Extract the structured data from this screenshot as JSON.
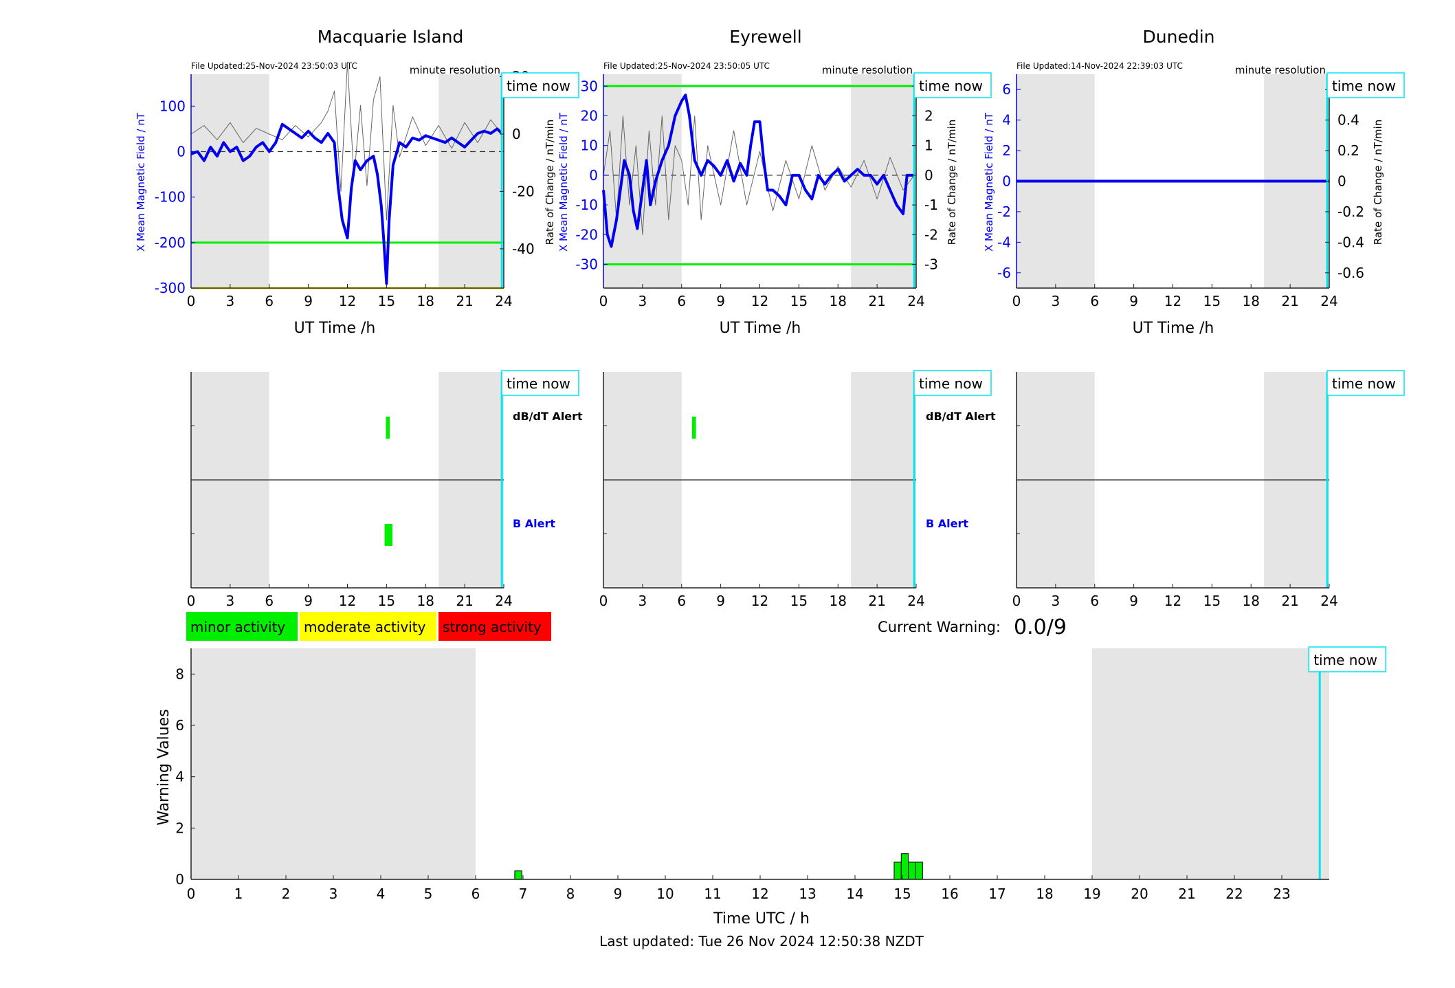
{
  "chart_data": [
    {
      "id": "macquarie",
      "type": "line",
      "title": "Macquarie Island",
      "file_updated": "File Updated:25-Nov-2024 23:50:03 UTC",
      "resolution": "minute resolution",
      "time_now_label": "time now",
      "xlabel": "UT Time /h",
      "ylabel_left": "X Mean Magnetic Field / nT",
      "ylabel_right": "Rate of Change / nT/min",
      "xlim": [
        0,
        24
      ],
      "ylim_left": [
        -300,
        170
      ],
      "ylim_right": [
        -53.7,
        20.85
      ],
      "x_ticks": [
        "0",
        "3",
        "6",
        "9",
        "12",
        "15",
        "18",
        "21",
        "24"
      ],
      "y_ticks_left": [
        "-300",
        "-200",
        "-100",
        "0",
        "100"
      ],
      "y_ticks_right": [
        "-40",
        "-20",
        "0",
        "20"
      ],
      "night_shading_hours": [
        [
          0,
          6
        ],
        [
          19,
          24
        ]
      ],
      "threshold_lines": [
        {
          "value": -200,
          "color": "#00ee00"
        },
        {
          "value": -300,
          "color": "#ffff00"
        }
      ],
      "time_now_hour": 23.85,
      "series": [
        {
          "color": "#0000ee",
          "x": [
            0,
            0.5,
            1,
            1.5,
            2,
            2.5,
            3,
            3.5,
            4,
            4.5,
            5,
            5.5,
            6,
            6.5,
            7,
            7.5,
            8,
            8.5,
            9,
            9.5,
            10,
            10.5,
            11,
            11.3,
            11.6,
            12,
            12.3,
            12.6,
            13,
            13.5,
            14,
            14.3,
            14.6,
            14.8,
            15,
            15.2,
            15.5,
            16,
            16.5,
            17,
            17.5,
            18,
            18.5,
            19,
            19.5,
            20,
            20.5,
            21,
            21.5,
            22,
            22.5,
            23,
            23.5,
            23.85
          ],
          "y": [
            -5,
            0,
            -20,
            10,
            -10,
            20,
            0,
            10,
            -20,
            -10,
            10,
            20,
            0,
            20,
            60,
            50,
            40,
            30,
            45,
            30,
            20,
            40,
            20,
            -80,
            -150,
            -190,
            -80,
            -20,
            -40,
            -20,
            -10,
            -50,
            -120,
            -200,
            -290,
            -150,
            -30,
            20,
            10,
            30,
            25,
            35,
            30,
            25,
            20,
            30,
            20,
            10,
            25,
            40,
            45,
            40,
            50,
            40
          ]
        },
        {
          "color": "#666666",
          "x": [
            0,
            1,
            2,
            3,
            4,
            5,
            6,
            7,
            8,
            9,
            10,
            10.5,
            11,
            11.5,
            12,
            12.5,
            13,
            13.5,
            14,
            14.5,
            15,
            15.5,
            16,
            17,
            18,
            19,
            20,
            21,
            22,
            23,
            23.85
          ],
          "y": [
            0,
            3,
            -2,
            4,
            -3,
            2,
            0,
            -2,
            3,
            -1,
            4,
            8,
            15,
            -20,
            25,
            -15,
            10,
            -18,
            12,
            20,
            -30,
            10,
            -8,
            6,
            -4,
            3,
            -5,
            4,
            -3,
            5,
            0
          ]
        }
      ]
    },
    {
      "id": "eyrewell",
      "type": "line",
      "title": "Eyrewell",
      "file_updated": "File Updated:25-Nov-2024 23:50:05 UTC",
      "resolution": "minute resolution",
      "time_now_label": "time now",
      "xlabel": "UT Time /h",
      "ylabel_left": "X Mean Magnetic Field / nT",
      "ylabel_right": "Rate of Change / nT/min",
      "xlim": [
        0,
        24
      ],
      "ylim_left": [
        -38,
        34
      ],
      "ylim_right": [
        -3.8,
        3.4
      ],
      "x_ticks": [
        "0",
        "3",
        "6",
        "9",
        "12",
        "15",
        "18",
        "21",
        "24"
      ],
      "y_ticks_left": [
        "-30",
        "-20",
        "-10",
        "0",
        "10",
        "20",
        "30"
      ],
      "y_ticks_right": [
        "-3",
        "-2",
        "-1",
        "0",
        "1",
        "2",
        "3"
      ],
      "night_shading_hours": [
        [
          0,
          6
        ],
        [
          19,
          24
        ]
      ],
      "threshold_lines": [
        {
          "value": 30,
          "color": "#00ee00"
        },
        {
          "value": -30,
          "color": "#00ee00"
        }
      ],
      "time_now_hour": 23.85,
      "series": [
        {
          "color": "#0000ee",
          "x": [
            0,
            0.3,
            0.6,
            1,
            1.3,
            1.6,
            2,
            2.3,
            2.6,
            3,
            3.3,
            3.6,
            4,
            4.5,
            5,
            5.5,
            6,
            6.3,
            6.6,
            7,
            7.5,
            8,
            8.5,
            9,
            9.5,
            10,
            10.5,
            11,
            11.3,
            11.6,
            12,
            12.3,
            12.6,
            13,
            13.5,
            14,
            14.5,
            15,
            15.5,
            16,
            16.5,
            17,
            17.5,
            18,
            18.5,
            19,
            19.5,
            20,
            20.5,
            21,
            21.5,
            22,
            22.5,
            23,
            23.3,
            23.6,
            23.85
          ],
          "y": [
            -5,
            -20,
            -24,
            -15,
            -5,
            5,
            0,
            -12,
            -18,
            -5,
            5,
            -10,
            -2,
            5,
            10,
            20,
            25,
            27,
            20,
            5,
            0,
            5,
            3,
            0,
            5,
            -2,
            4,
            0,
            10,
            18,
            18,
            5,
            -5,
            -5,
            -7,
            -10,
            0,
            0,
            -5,
            -8,
            0,
            -3,
            0,
            2,
            -2,
            0,
            2,
            0,
            0,
            -3,
            0,
            -5,
            -10,
            -13,
            0,
            0,
            0
          ]
        },
        {
          "color": "#666666",
          "x": [
            0,
            0.5,
            1,
            1.5,
            2,
            2.5,
            3,
            3.5,
            4,
            4.5,
            5,
            5.5,
            6,
            6.5,
            7,
            7.5,
            8,
            9,
            10,
            11,
            12,
            13,
            14,
            15,
            16,
            17,
            18,
            19,
            20,
            21,
            22,
            23,
            23.85
          ],
          "y": [
            0,
            1.5,
            -1.5,
            2,
            -1,
            1,
            -2,
            1.5,
            -1,
            2,
            -1.5,
            1,
            0.5,
            -1,
            2,
            -1.5,
            1,
            -1,
            1.5,
            -1,
            0.8,
            -1.2,
            0.5,
            -0.8,
            1,
            -0.5,
            0.3,
            -0.4,
            0.5,
            -0.8,
            0.6,
            -0.5,
            0
          ]
        }
      ]
    },
    {
      "id": "dunedin",
      "type": "line",
      "title": "Dunedin",
      "file_updated": "File Updated:14-Nov-2024 22:39:03 UTC",
      "resolution": "minute resolution",
      "time_now_label": "time now",
      "xlabel": "UT Time /h",
      "ylabel_left": "X Mean Magnetic Field / nT",
      "ylabel_right": "Rate of Change / nT/min",
      "xlim": [
        0,
        24
      ],
      "ylim_left": [
        -7,
        7
      ],
      "ylim_right": [
        -0.7,
        0.7
      ],
      "x_ticks": [
        "0",
        "3",
        "6",
        "9",
        "12",
        "15",
        "18",
        "21",
        "24"
      ],
      "y_ticks_left": [
        "-6",
        "-4",
        "-2",
        "0",
        "2",
        "4",
        "6"
      ],
      "y_ticks_right": [
        "-0.6",
        "-0.4",
        "-0.2",
        "0",
        "0.2",
        "0.4",
        "0.6"
      ],
      "night_shading_hours": [
        [
          0,
          6
        ],
        [
          19,
          24
        ]
      ],
      "threshold_lines": [],
      "time_now_hour": 23.85,
      "series": [
        {
          "color": "#0000ee",
          "x": [
            0,
            24
          ],
          "y": [
            0,
            0
          ]
        }
      ]
    },
    {
      "id": "alerts",
      "type": "bar",
      "panels": [
        {
          "station": "macquarie",
          "time_now_label": "time now",
          "dbdt_label": "dB/dT Alert",
          "b_label": "B Alert",
          "dbdt_alerts": [
            {
              "start": 14.95,
              "end": 15.25
            }
          ],
          "b_alerts": [
            {
              "start": 14.85,
              "end": 15.45
            }
          ],
          "x_ticks": [
            "0",
            "3",
            "6",
            "9",
            "12",
            "15",
            "18",
            "21",
            "24"
          ]
        },
        {
          "station": "eyrewell",
          "time_now_label": "time now",
          "dbdt_label": "dB/dT Alert",
          "b_label": "B Alert",
          "dbdt_alerts": [
            {
              "start": 6.8,
              "end": 7.1
            }
          ],
          "b_alerts": [],
          "x_ticks": [
            "0",
            "3",
            "6",
            "9",
            "12",
            "15",
            "18",
            "21",
            "24"
          ]
        },
        {
          "station": "dunedin",
          "time_now_label": "time now",
          "dbdt_label": "",
          "b_label": "",
          "dbdt_alerts": [],
          "b_alerts": [],
          "x_ticks": [
            "0",
            "3",
            "6",
            "9",
            "12",
            "15",
            "18",
            "21",
            "24"
          ]
        }
      ]
    },
    {
      "id": "warnings",
      "type": "bar",
      "xlabel": "Time UTC / h",
      "ylabel": "Warning Values",
      "xlim": [
        0,
        24
      ],
      "ylim": [
        0,
        9
      ],
      "x_ticks": [
        "0",
        "1",
        "2",
        "3",
        "4",
        "5",
        "6",
        "7",
        "8",
        "9",
        "10",
        "11",
        "12",
        "13",
        "14",
        "15",
        "16",
        "17",
        "18",
        "19",
        "20",
        "21",
        "22",
        "23"
      ],
      "y_ticks": [
        "0",
        "2",
        "4",
        "6",
        "8"
      ],
      "night_shading_hours": [
        [
          0,
          6
        ],
        [
          19,
          24
        ]
      ],
      "time_now_hour": 23.8,
      "time_now_label": "time now",
      "bars": [
        {
          "x": 6.9,
          "value": 0.33
        },
        {
          "x": 14.9,
          "value": 0.67
        },
        {
          "x": 15.05,
          "value": 1.0
        },
        {
          "x": 15.2,
          "value": 0.67
        },
        {
          "x": 15.35,
          "value": 0.67
        }
      ],
      "bar_width_hours": 0.15
    }
  ],
  "legend": [
    {
      "label": "minor activity",
      "color": "#00ee00"
    },
    {
      "label": "moderate activity",
      "color": "#ffff00"
    },
    {
      "label": "strong activity",
      "color": "#ff0000"
    }
  ],
  "current_warning_label": "Current Warning:",
  "current_warning_value": "0.0/9",
  "last_updated": "Last updated: Tue 26 Nov 2024 12:50:38 NZDT"
}
